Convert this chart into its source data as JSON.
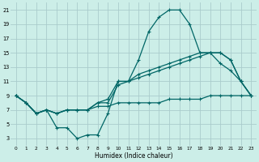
{
  "xlabel": "Humidex (Indice chaleur)",
  "background_color": "#cceee8",
  "grid_color": "#aacccc",
  "line_color": "#006666",
  "x_values": [
    0,
    1,
    2,
    3,
    4,
    5,
    6,
    7,
    8,
    9,
    10,
    11,
    12,
    13,
    14,
    15,
    16,
    17,
    18,
    19,
    20,
    21,
    22,
    23
  ],
  "series_main": [
    9,
    8,
    6.5,
    7,
    4.5,
    4.5,
    3,
    3.5,
    3.5,
    6.5,
    11,
    11,
    14,
    18,
    20,
    21,
    21,
    19,
    15,
    15,
    13.5,
    12.5,
    11,
    9
  ],
  "series_flat": [
    9,
    8,
    6.5,
    7,
    6.5,
    7,
    7,
    7,
    7.5,
    7.5,
    8,
    8,
    8,
    8,
    8,
    8.5,
    8.5,
    8.5,
    8.5,
    9,
    9,
    9,
    9,
    9
  ],
  "series_diag1": [
    9,
    8,
    6.5,
    7,
    6.5,
    7,
    7,
    7,
    8,
    8.5,
    11,
    11,
    12,
    12.5,
    13,
    13.5,
    14,
    14.5,
    15,
    15,
    15,
    14,
    11,
    9
  ],
  "series_diag2": [
    9,
    8,
    6.5,
    7,
    6.5,
    7,
    7,
    7,
    8,
    8,
    10.5,
    11,
    11.5,
    12,
    12.5,
    13,
    13.5,
    14,
    14.5,
    15,
    15,
    14,
    11,
    9
  ],
  "xlim": [
    -0.5,
    23.5
  ],
  "ylim": [
    2,
    22
  ],
  "yticks": [
    3,
    5,
    7,
    9,
    11,
    13,
    15,
    17,
    19,
    21
  ],
  "xticks": [
    0,
    1,
    2,
    3,
    4,
    5,
    6,
    7,
    8,
    9,
    10,
    11,
    12,
    13,
    14,
    15,
    16,
    17,
    18,
    19,
    20,
    21,
    22,
    23
  ]
}
